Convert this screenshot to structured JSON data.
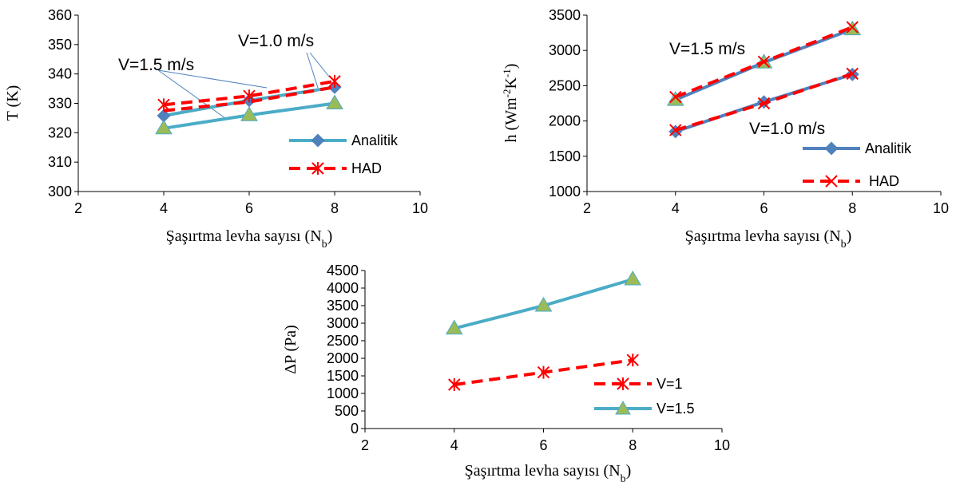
{
  "colors": {
    "analitik_teal": "#4BACC6",
    "analitik_blue": "#4F81BD",
    "had_red": "#FF0000",
    "marker_diamond": "#4F81BD",
    "marker_triangle_fill": "#9BBB59",
    "marker_triangle_edge": "#4BACC6",
    "annotation_line": "#4F81BD"
  },
  "chart_data": [
    {
      "type": "line",
      "ylabel": "T (K)",
      "xlabel": "Şaşırtma levha sayısı (N",
      "xlabel_sub": "b",
      "xlabel_end": ")",
      "xlim": [
        2,
        10
      ],
      "ylim": [
        300,
        360
      ],
      "x_ticks": [
        2,
        4,
        6,
        8,
        10
      ],
      "y_ticks": [
        300,
        310,
        320,
        330,
        340,
        350,
        360
      ],
      "x": [
        4,
        6,
        8
      ],
      "series": [
        {
          "name": "Analitik",
          "values": [
            325.8,
            331.0,
            335.5
          ],
          "style": "analitik"
        },
        {
          "name": "HAD",
          "values": [
            329.5,
            332.5,
            337.5
          ],
          "style": "had"
        },
        {
          "name": "",
          "values": [
            321.5,
            326.0,
            330.0
          ],
          "style": "analitik-triangle"
        },
        {
          "name": "",
          "values": [
            327.5,
            330.5,
            335.5
          ],
          "style": "had-plain"
        }
      ],
      "legend": {
        "position": "right",
        "entries": [
          "Analitik",
          "HAD"
        ]
      },
      "annotations": [
        "V=1.5 m/s",
        "V=1.0 m/s"
      ]
    },
    {
      "type": "line",
      "ylabel": "h (Wm",
      "ylabel_sup1": "-2",
      "ylabel_mid": "K",
      "ylabel_sup2": "-1",
      "ylabel_end": ")",
      "xlabel": "Şaşırtma levha sayısı (N",
      "xlabel_sub": "b",
      "xlabel_end": ")",
      "xlim": [
        2,
        10
      ],
      "ylim": [
        1000,
        3500
      ],
      "x_ticks": [
        2,
        4,
        6,
        8,
        10
      ],
      "y_ticks": [
        1000,
        1500,
        2000,
        2500,
        3000,
        3500
      ],
      "x": [
        4,
        6,
        8
      ],
      "series": [
        {
          "name": "Analitik",
          "values": [
            1850,
            2270,
            2660
          ],
          "style": "analitik-blue"
        },
        {
          "name": "HAD",
          "values": [
            1870,
            2250,
            2670
          ],
          "style": "had-x"
        },
        {
          "name": "",
          "values": [
            2300,
            2830,
            3300
          ],
          "style": "blue-triangle"
        },
        {
          "name": "",
          "values": [
            2340,
            2840,
            3330
          ],
          "style": "had-x"
        }
      ],
      "legend": {
        "position": "bottom-right",
        "entries": [
          "Analitik",
          "HAD"
        ]
      },
      "annotations": [
        "V=1.5 m/s",
        "V=1.0 m/s"
      ]
    },
    {
      "type": "line",
      "ylabel": "ΔP (Pa)",
      "xlabel": "Şaşırtma levha sayısı (N",
      "xlabel_sub": "b",
      "xlabel_end": ")",
      "xlim": [
        2,
        10
      ],
      "ylim": [
        0,
        4500
      ],
      "x_ticks": [
        2,
        4,
        6,
        8,
        10
      ],
      "y_ticks": [
        0,
        500,
        1000,
        1500,
        2000,
        2500,
        3000,
        3500,
        4000,
        4500
      ],
      "x": [
        4,
        6,
        8
      ],
      "series": [
        {
          "name": "V=1",
          "values": [
            1250,
            1600,
            1950
          ],
          "style": "had"
        },
        {
          "name": "V=1.5",
          "values": [
            2850,
            3500,
            4250
          ],
          "style": "analitik-triangle"
        }
      ],
      "legend": {
        "position": "bottom-right",
        "entries": [
          "V=1",
          "V=1.5"
        ]
      }
    }
  ]
}
